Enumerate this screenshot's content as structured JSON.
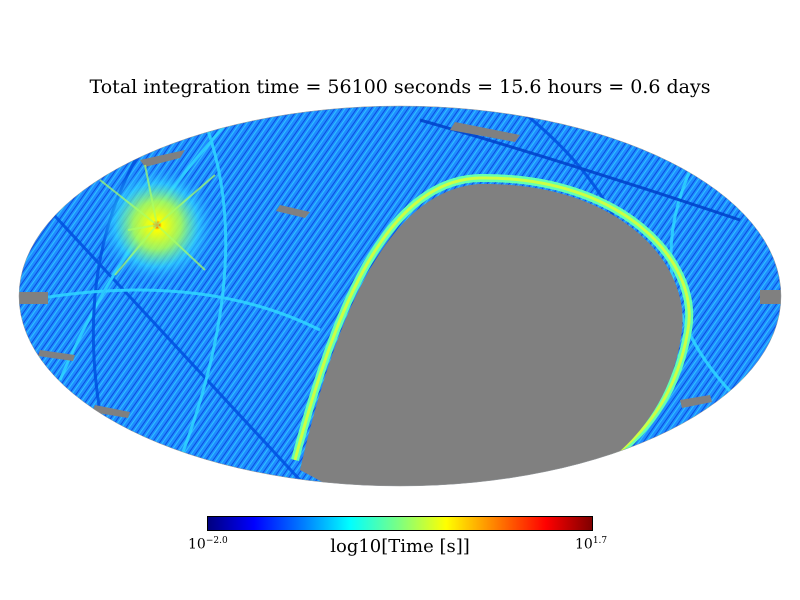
{
  "chart_data": {
    "type": "heatmap",
    "projection": "mollweide",
    "title": "Total integration time = 56100 seconds = 15.6 hours = 0.6 days",
    "colorbar": {
      "label": "log10[Time [s]]",
      "min_base": "10",
      "min_exp": "−2.0",
      "max_base": "10",
      "max_exp": "1.7",
      "vmin": -2.0,
      "vmax": 1.7,
      "colormap": "jet"
    },
    "colors": {
      "unobserved": "#808080",
      "background": "#ffffff"
    }
  }
}
